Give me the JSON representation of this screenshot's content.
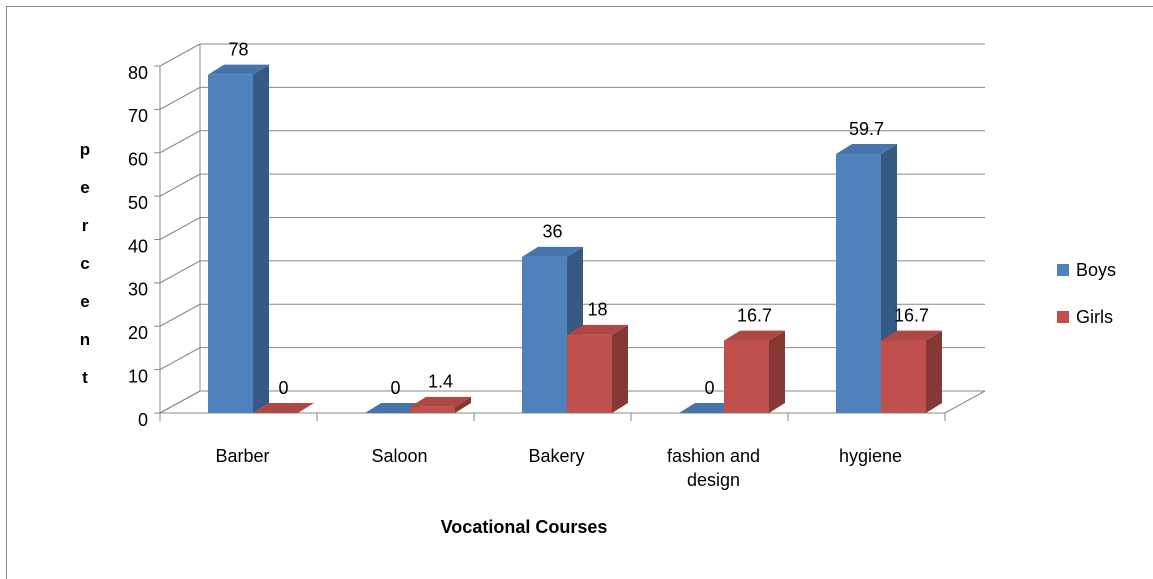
{
  "chart_data": {
    "type": "bar3d",
    "x_label": "Vocational Courses",
    "y_label": "percent",
    "categories": [
      "Barber",
      "Saloon",
      "Bakery",
      "fashion and design",
      "hygiene"
    ],
    "series": [
      {
        "name": "Boys",
        "color": "#4f81bd",
        "values": [
          78,
          0,
          36,
          0,
          59.7
        ]
      },
      {
        "name": "Girls",
        "color": "#c0504d",
        "values": [
          0,
          1.4,
          18,
          16.7,
          16.7
        ]
      }
    ],
    "ylim": [
      0,
      80
    ],
    "yticks": [
      0,
      10,
      20,
      30,
      40,
      50,
      60,
      70,
      80
    ],
    "grid": true,
    "legend": "right"
  }
}
